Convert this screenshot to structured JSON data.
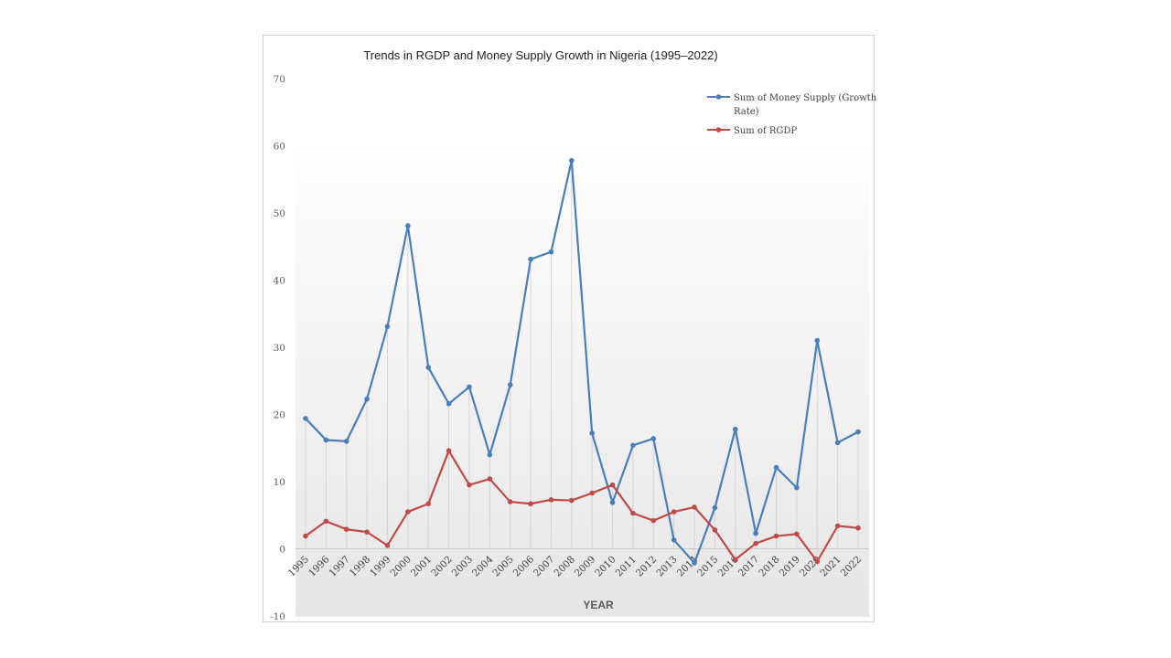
{
  "chart_data": {
    "type": "line",
    "title": "Trends in RGDP and Money Supply Growth in Nigeria (1995–2022)",
    "xlabel": "YEAR",
    "ylabel": "",
    "ylim": [
      -10,
      70
    ],
    "yticks": [
      -10,
      0,
      10,
      20,
      30,
      40,
      50,
      60,
      70
    ],
    "categories": [
      "1995",
      "1996",
      "1997",
      "1998",
      "1999",
      "2000",
      "2001",
      "2002",
      "2003",
      "2004",
      "2005",
      "2006",
      "2007",
      "2008",
      "2009",
      "2010",
      "2011",
      "2012",
      "2013",
      "2014",
      "2015",
      "2016",
      "2017",
      "2018",
      "2019",
      "2020",
      "2021",
      "2022"
    ],
    "series": [
      {
        "name": "Sum of Money Supply (Growth Rate)",
        "legend_lines": [
          "Sum of Money Supply (Growth",
          "Rate)"
        ],
        "color": "#4a7ebb",
        "values": [
          19.4,
          16.2,
          16.0,
          22.3,
          33.1,
          48.1,
          27.0,
          21.6,
          24.1,
          14.0,
          24.4,
          43.1,
          44.2,
          57.8,
          17.2,
          6.9,
          15.4,
          16.4,
          1.3,
          -2.1,
          6.1,
          17.8,
          2.3,
          12.1,
          9.1,
          31.0,
          15.8,
          17.4
        ]
      },
      {
        "name": "Sum of RGDP",
        "legend_lines": [
          "Sum of RGDP"
        ],
        "color": "#be4b48",
        "values": [
          1.9,
          4.1,
          2.9,
          2.5,
          0.5,
          5.5,
          6.7,
          14.6,
          9.5,
          10.4,
          7.0,
          6.7,
          7.3,
          7.2,
          8.3,
          9.5,
          5.3,
          4.2,
          5.5,
          6.2,
          2.8,
          -1.6,
          0.8,
          1.9,
          2.2,
          -1.9,
          3.4,
          3.1
        ]
      }
    ],
    "legend_position": "top-right",
    "grid": false,
    "drop_lines": true
  }
}
